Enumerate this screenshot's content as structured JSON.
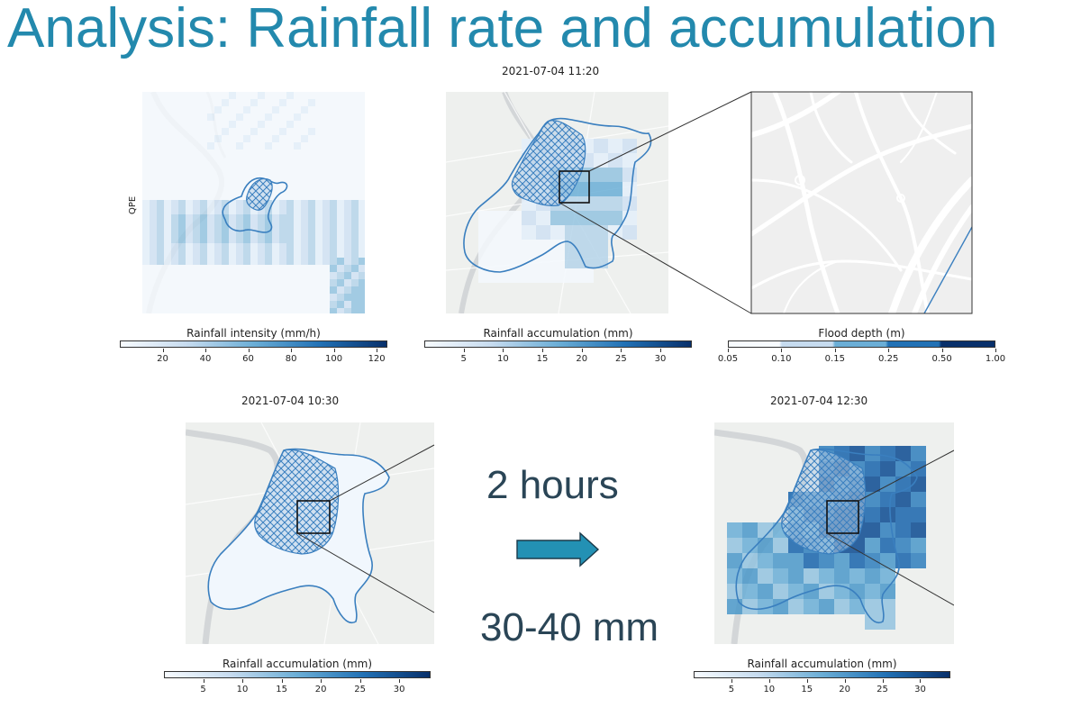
{
  "title": "Analysis: Rainfall rate and accumulation",
  "top_timestamp": "2021-07-04 11:20",
  "qpe_label": "QPE",
  "bottom_left_timestamp": "2021-07-04 10:30",
  "bottom_right_timestamp": "2021-07-04 12:30",
  "arrow_top_label": "2 hours",
  "arrow_bottom_label": "30-40 mm",
  "colorbars": {
    "intensity": {
      "title": "Rainfall intensity (mm/h)",
      "min": 0,
      "max": 125,
      "ticks": [
        "20",
        "40",
        "60",
        "80",
        "100",
        "120"
      ],
      "tick_values": [
        20,
        40,
        60,
        80,
        100,
        120
      ]
    },
    "accum_top": {
      "title": "Rainfall accumulation (mm)",
      "min": 0,
      "max": 34,
      "ticks": [
        "5",
        "10",
        "15",
        "20",
        "25",
        "30"
      ],
      "tick_values": [
        5,
        10,
        15,
        20,
        25,
        30
      ]
    },
    "flood": {
      "title": "Flood depth (m)",
      "ticks": [
        "0.05",
        "0.10",
        "0.15",
        "0.25",
        "0.50",
        "1.00"
      ]
    },
    "accum_bl": {
      "title": "Rainfall accumulation (mm)",
      "min": 0,
      "max": 34,
      "ticks": [
        "5",
        "10",
        "15",
        "20",
        "25",
        "30"
      ],
      "tick_values": [
        5,
        10,
        15,
        20,
        25,
        30
      ]
    },
    "accum_br": {
      "title": "Rainfall accumulation (mm)",
      "min": 0,
      "max": 34,
      "ticks": [
        "5",
        "10",
        "15",
        "20",
        "25",
        "30"
      ],
      "tick_values": [
        5,
        10,
        15,
        20,
        25,
        30
      ]
    }
  },
  "colors": {
    "title": "#2389ad",
    "outline": "#3a7fbf",
    "arrow": "#2391b4",
    "map_bg": "#eef0ee",
    "river": "#d6d9dc",
    "cmap_low": "#f7fbff",
    "cmap_high": "#08306b"
  }
}
